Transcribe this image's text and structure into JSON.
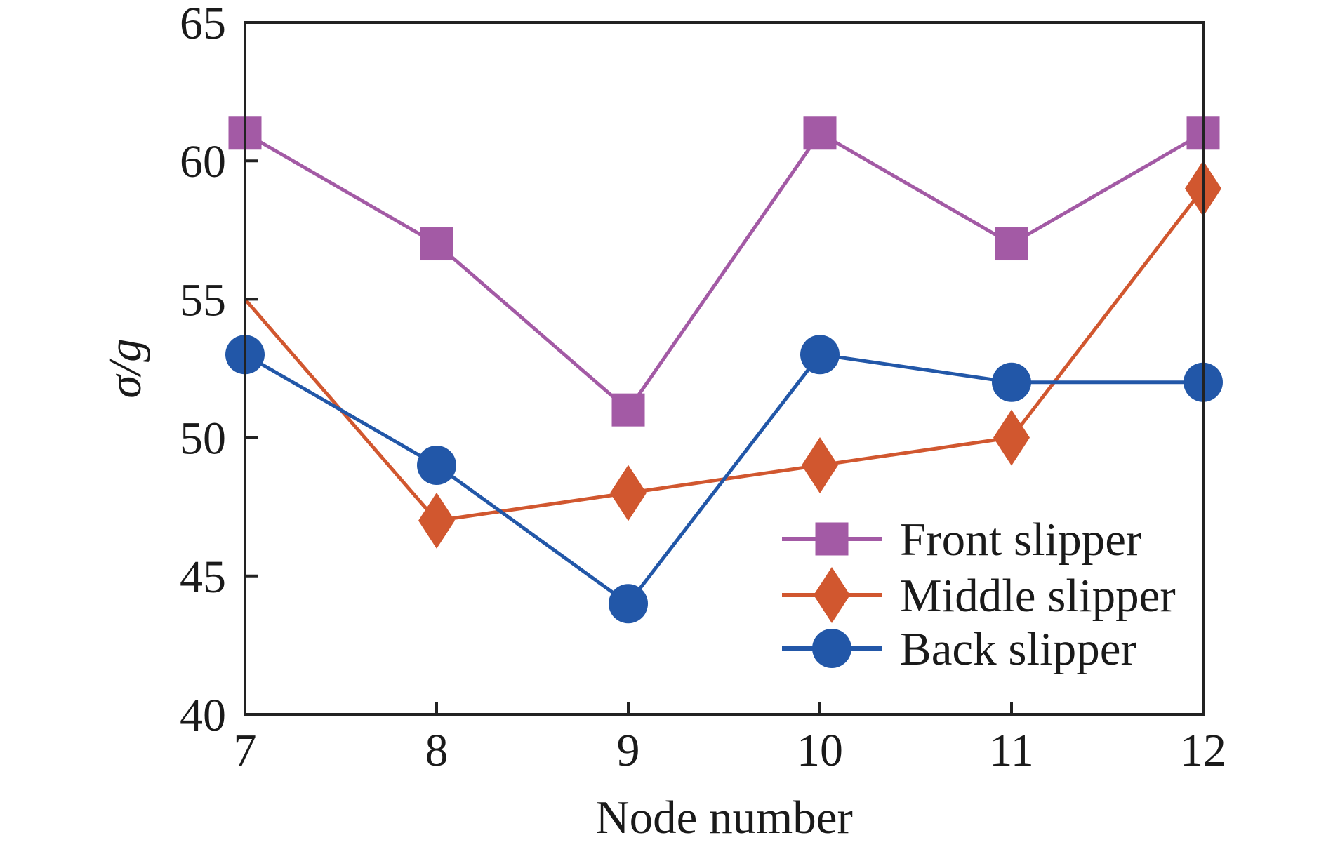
{
  "chart_data": {
    "type": "line",
    "title": "",
    "xlabel": "Node number",
    "ylabel": "σ/g",
    "x": [
      7,
      8,
      9,
      10,
      11,
      12
    ],
    "xlim": [
      7,
      12
    ],
    "ylim": [
      40,
      65
    ],
    "x_ticks": [
      "7",
      "8",
      "9",
      "10",
      "11",
      "12"
    ],
    "y_ticks": [
      "40",
      "45",
      "50",
      "55",
      "60",
      "65"
    ],
    "grid": false,
    "legend_position": "bottom-right",
    "series": [
      {
        "name": "Front slipper",
        "marker": "square",
        "color": "#A35AA5",
        "values": [
          61,
          57,
          51,
          61,
          57,
          61
        ]
      },
      {
        "name": "Middle slipper",
        "marker": "diamond",
        "color": "#D1572F",
        "values": [
          55,
          47,
          48,
          49,
          50,
          59
        ],
        "hidden_markers": [
          0
        ]
      },
      {
        "name": "Back slipper",
        "marker": "circle",
        "color": "#2257A8",
        "values": [
          53,
          49,
          44,
          53,
          52,
          52
        ]
      }
    ]
  }
}
